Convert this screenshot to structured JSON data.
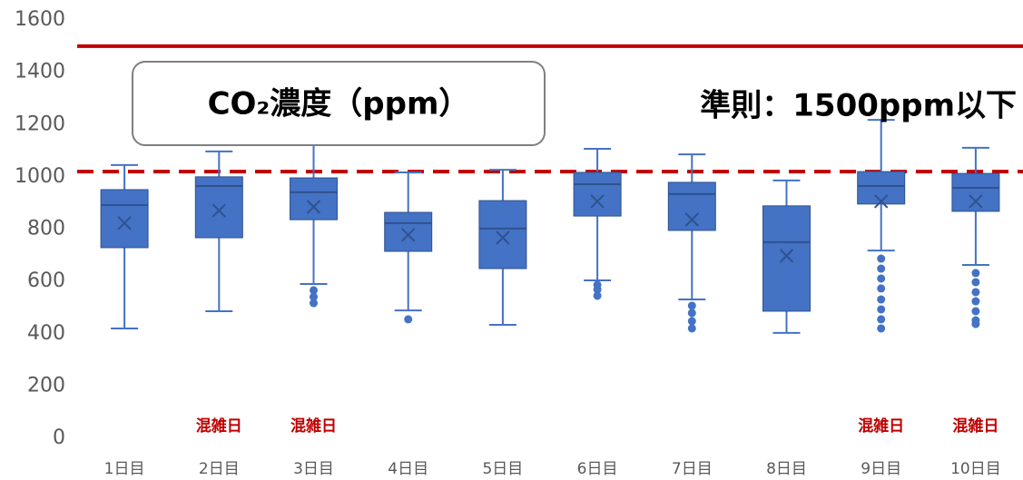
{
  "chart_data": {
    "type": "box",
    "categories": [
      "1日目",
      "2日目",
      "3日目",
      "4日目",
      "5日目",
      "6日目",
      "7日目",
      "8日目",
      "9日目",
      "10日目"
    ],
    "category_notes": [
      null,
      "混雑日",
      "混雑日",
      null,
      null,
      null,
      null,
      null,
      "混雑日",
      "混雑日"
    ],
    "color": "#4472c4",
    "boxes": [
      {
        "whisker_low": 420,
        "q1": 729,
        "median": 892,
        "q3": 951,
        "whisker_high": 1045,
        "mean": 823,
        "outliers": []
      },
      {
        "whisker_low": 486,
        "q1": 767,
        "median": 965,
        "q3": 1000,
        "whisker_high": 1097,
        "mean": 871,
        "outliers": []
      },
      {
        "whisker_low": 590,
        "q1": 836,
        "median": 941,
        "q3": 996,
        "whisker_high": 1152,
        "mean": 885,
        "outliers": [
          566,
          541,
          517
        ]
      },
      {
        "whisker_low": 489,
        "q1": 715,
        "median": 823,
        "q3": 864,
        "whisker_high": 1017,
        "mean": 778,
        "outliers": [
          455
        ]
      },
      {
        "whisker_low": 434,
        "q1": 649,
        "median": 802,
        "q3": 909,
        "whisker_high": 1027,
        "mean": 767,
        "outliers": []
      },
      {
        "whisker_low": 604,
        "q1": 850,
        "median": 972,
        "q3": 1017,
        "whisker_high": 1107,
        "mean": 906,
        "outliers": [
          587,
          569,
          545
        ]
      },
      {
        "whisker_low": 531,
        "q1": 795,
        "median": 934,
        "q3": 979,
        "whisker_high": 1086,
        "mean": 836,
        "outliers": [
          507,
          479,
          448,
          420
        ]
      },
      {
        "whisker_low": 403,
        "q1": 486,
        "median": 750,
        "q3": 889,
        "whisker_high": 986,
        "mean": 698,
        "outliers": []
      },
      {
        "whisker_low": 718,
        "q1": 896,
        "median": 965,
        "q3": 1020,
        "whisker_high": 1218,
        "mean": 906,
        "outliers": [
          687,
          649,
          611,
          573,
          531,
          493,
          455,
          420
        ]
      },
      {
        "whisker_low": 663,
        "q1": 868,
        "median": 958,
        "q3": 1013,
        "whisker_high": 1111,
        "mean": 906,
        "outliers": [
          632,
          597,
          559,
          524,
          486,
          451,
          437
        ]
      }
    ],
    "ylim": [
      0,
      1600
    ],
    "yticks": [
      0,
      200,
      400,
      600,
      800,
      1000,
      1200,
      1400,
      1600
    ],
    "grid": false,
    "reference_lines": [
      {
        "value": 1500,
        "color": "#c00000",
        "style": "solid"
      },
      {
        "value": 1020,
        "color": "#c00000",
        "style": "dashed"
      }
    ],
    "label_box": "CO₂濃度（ppm）",
    "criterion": "準則：1500ppm以下"
  }
}
